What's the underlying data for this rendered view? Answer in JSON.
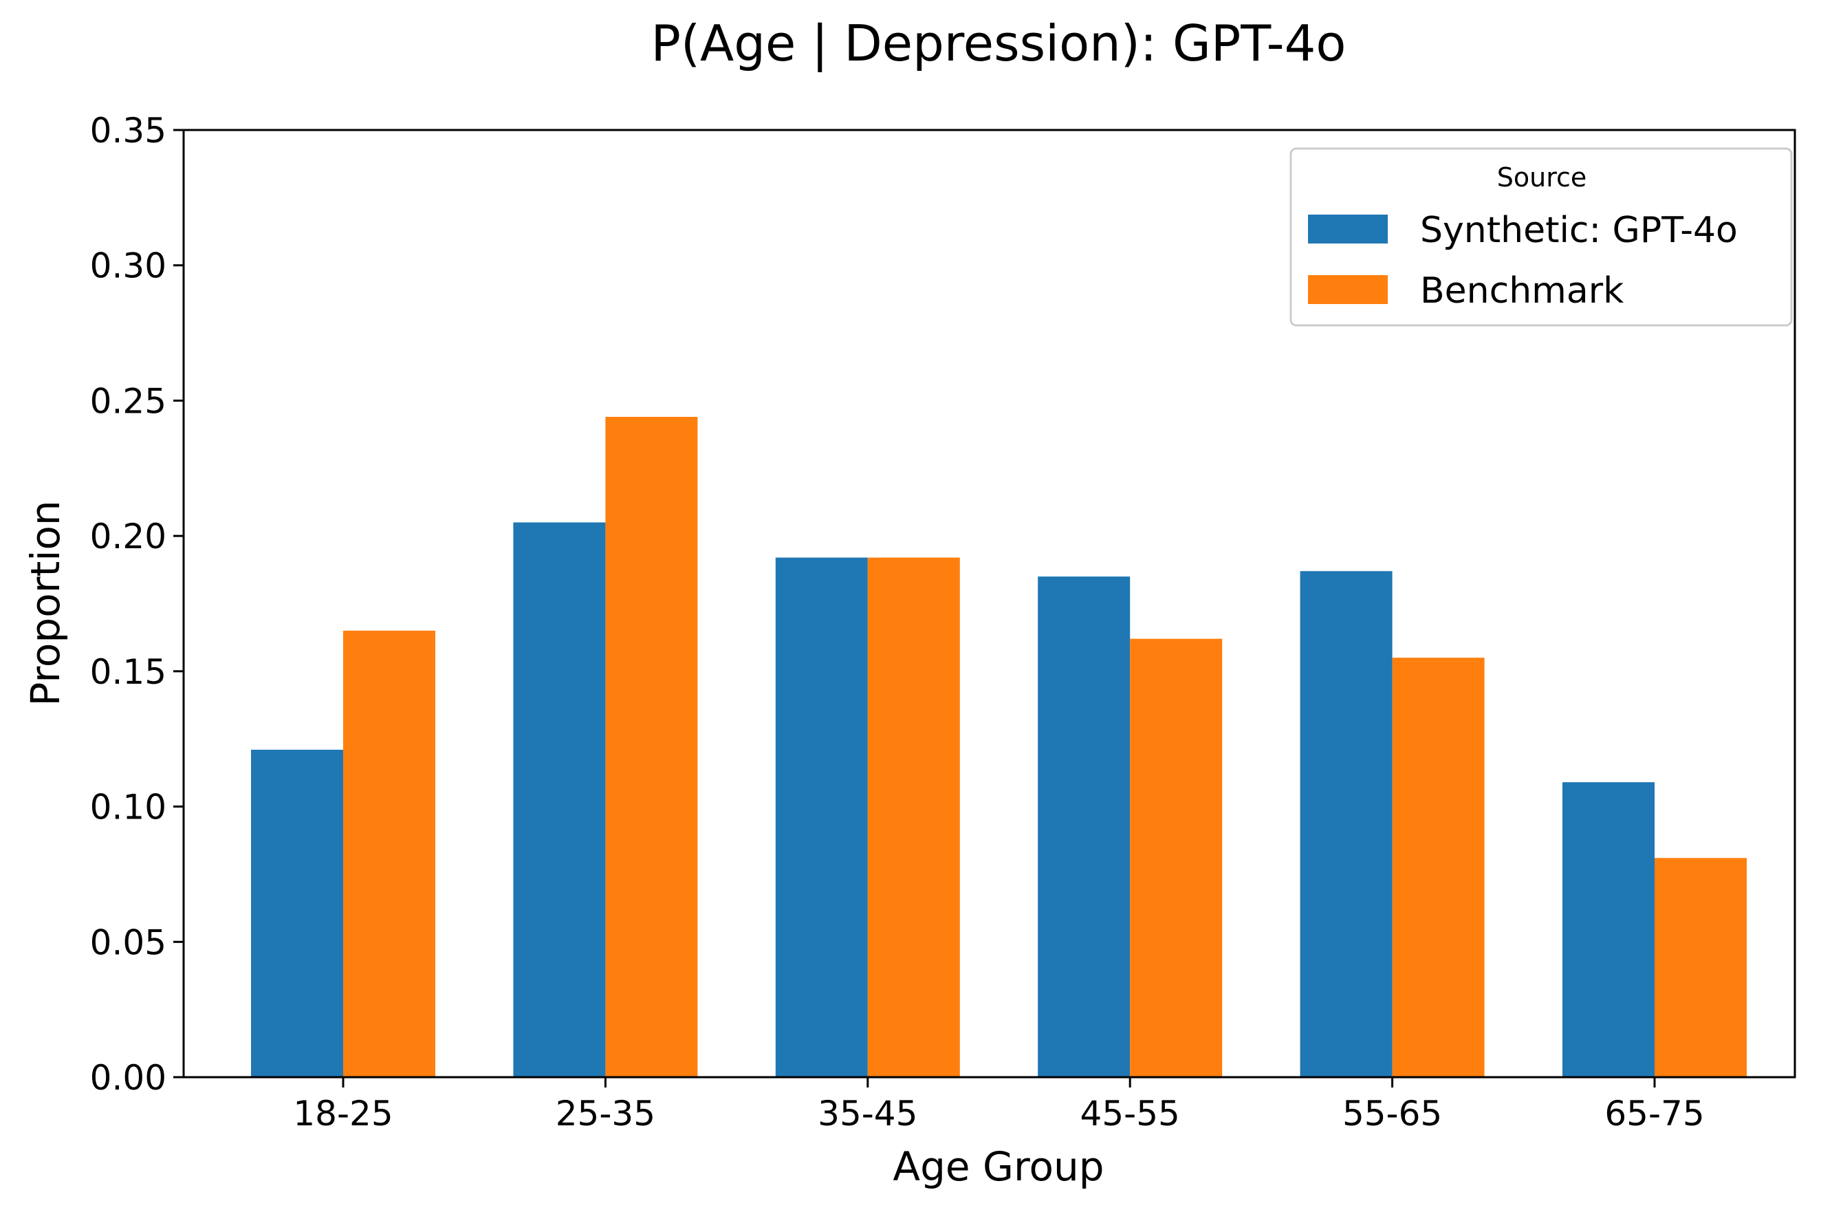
{
  "chart_data": {
    "type": "bar",
    "title": "P(Age | Depression): GPT-4o",
    "xlabel": "Age Group",
    "ylabel": "Proportion",
    "categories": [
      "18-25",
      "25-35",
      "35-45",
      "45-55",
      "55-65",
      "65-75"
    ],
    "series": [
      {
        "name": "Synthetic: GPT-4o",
        "color": "#1f77b4",
        "values": [
          0.121,
          0.205,
          0.192,
          0.185,
          0.187,
          0.109
        ]
      },
      {
        "name": "Benchmark",
        "color": "#ff7f0e",
        "values": [
          0.165,
          0.244,
          0.192,
          0.162,
          0.155,
          0.081
        ]
      }
    ],
    "ylim": [
      0,
      0.35
    ],
    "yticks": [
      "0.00",
      "0.05",
      "0.10",
      "0.15",
      "0.20",
      "0.25",
      "0.30",
      "0.35"
    ],
    "legend": {
      "title": "Source",
      "position": "top-right"
    },
    "grid": false
  }
}
